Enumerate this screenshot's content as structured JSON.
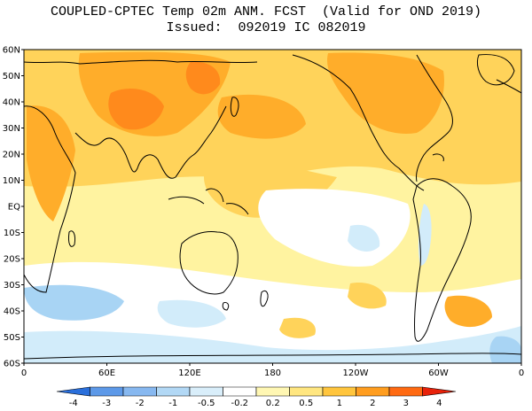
{
  "title": {
    "line1": "COUPLED-CPTEC Temp 02m ANM. FCST  (Valid for OND 2019)",
    "line2": "Issued:  092019 IC 082019"
  },
  "map": {
    "lat_labels": [
      "60N",
      "50N",
      "40N",
      "30N",
      "20N",
      "10N",
      "EQ",
      "10S",
      "20S",
      "30S",
      "40S",
      "50S",
      "60S"
    ],
    "lon_labels": [
      "0",
      "60E",
      "120E",
      "180",
      "120W",
      "60W",
      "0"
    ]
  },
  "colorbar": {
    "labels": [
      "-4",
      "-3",
      "-2",
      "-1",
      "-0.5",
      "-0.2",
      "0.2",
      "0.5",
      "1",
      "2",
      "3",
      "4"
    ],
    "colors": [
      "#2a6fdb",
      "#5d99e8",
      "#87b8f0",
      "#b2d8f5",
      "#d9eefa",
      "#ffffff",
      "#fff7b3",
      "#ffe680",
      "#ffc53d",
      "#ff9d1f",
      "#ff6a12",
      "#e8220a"
    ]
  },
  "palette": {
    "ocean_warm_light": "#fff3a0",
    "warm_mid": "#ffd35a",
    "warm_strong": "#ffad2a",
    "hot": "#ff8a1c",
    "neutral": "#ffffff",
    "cool_light": "#d2ecfa",
    "cool_mid": "#a8d4f4",
    "coast": "#000000"
  }
}
